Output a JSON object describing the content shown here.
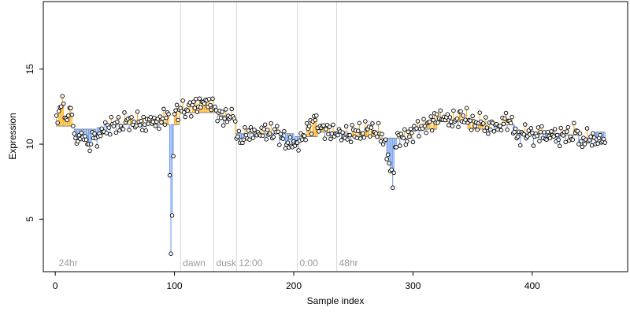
{
  "colors": {
    "above": "#ffa500",
    "below": "#6495ed",
    "point_fill": "#ffffff",
    "point_stroke": "#000000",
    "marker_line": "#d8d8d8"
  },
  "chart_data": {
    "type": "scatter",
    "title": "",
    "xlabel": "Sample index",
    "ylabel": "Expression",
    "xlim": [
      -10,
      480
    ],
    "ylim": [
      1.5,
      19.5
    ],
    "xticks": [
      0,
      100,
      200,
      300,
      400
    ],
    "yticks": [
      5,
      10,
      15
    ],
    "baseline_segments": [
      {
        "x_start": 1,
        "x_end": 15,
        "level": 11.2
      },
      {
        "x_start": 16,
        "x_end": 34,
        "level": 11.0
      },
      {
        "x_start": 35,
        "x_end": 40,
        "level": 11.1
      },
      {
        "x_start": 41,
        "x_end": 96,
        "level": 11.3
      },
      {
        "x_start": 97,
        "x_end": 104,
        "level": 11.3
      },
      {
        "x_start": 105,
        "x_end": 135,
        "level": 12.1
      },
      {
        "x_start": 136,
        "x_end": 150,
        "level": 11.9
      },
      {
        "x_start": 151,
        "x_end": 160,
        "level": 10.7
      },
      {
        "x_start": 161,
        "x_end": 200,
        "level": 10.7
      },
      {
        "x_start": 201,
        "x_end": 220,
        "level": 10.5
      },
      {
        "x_start": 221,
        "x_end": 245,
        "level": 10.8
      },
      {
        "x_start": 246,
        "x_end": 270,
        "level": 10.5
      },
      {
        "x_start": 271,
        "x_end": 300,
        "level": 10.4
      },
      {
        "x_start": 301,
        "x_end": 320,
        "level": 11.0
      },
      {
        "x_start": 321,
        "x_end": 345,
        "level": 11.5
      },
      {
        "x_start": 346,
        "x_end": 365,
        "level": 11.0
      },
      {
        "x_start": 366,
        "x_end": 385,
        "level": 11.3
      },
      {
        "x_start": 386,
        "x_end": 408,
        "level": 10.7
      },
      {
        "x_start": 409,
        "x_end": 425,
        "level": 10.7
      },
      {
        "x_start": 426,
        "x_end": 440,
        "level": 10.6
      },
      {
        "x_start": 441,
        "x_end": 452,
        "level": 10.3
      },
      {
        "x_start": 453,
        "x_end": 461,
        "level": 10.8
      }
    ],
    "markers": [
      {
        "x": 105,
        "label": "dawn"
      },
      {
        "x": 133,
        "label": "dusk"
      },
      {
        "x": 152,
        "label": "12:00"
      },
      {
        "x": 203,
        "label": "0:00"
      },
      {
        "x": 236,
        "label": "48hr"
      }
    ],
    "corner_label": {
      "x": 3,
      "label": "24hr"
    },
    "anchor_points": [
      [
        1,
        11.9
      ],
      [
        3,
        12.2
      ],
      [
        5,
        12.5
      ],
      [
        7,
        12.7
      ],
      [
        9,
        11.7
      ],
      [
        11,
        11.9
      ],
      [
        13,
        12.4
      ],
      [
        15,
        11.2
      ],
      [
        17,
        10.4
      ],
      [
        20,
        10.6
      ],
      [
        24,
        10.3
      ],
      [
        28,
        10.0
      ],
      [
        32,
        10.4
      ],
      [
        36,
        10.5
      ],
      [
        40,
        10.8
      ],
      [
        45,
        11.1
      ],
      [
        50,
        11.4
      ],
      [
        55,
        11.2
      ],
      [
        60,
        11.6
      ],
      [
        65,
        11.3
      ],
      [
        70,
        11.5
      ],
      [
        75,
        11.3
      ],
      [
        80,
        11.8
      ],
      [
        85,
        11.5
      ],
      [
        90,
        11.7
      ],
      [
        95,
        12.0
      ],
      [
        97,
        2.7
      ],
      [
        100,
        12.0
      ],
      [
        105,
        12.4
      ],
      [
        110,
        12.3
      ],
      [
        115,
        12.6
      ],
      [
        120,
        12.5
      ],
      [
        125,
        12.7
      ],
      [
        130,
        12.6
      ],
      [
        133,
        12.4
      ],
      [
        137,
        12.1
      ],
      [
        142,
        11.7
      ],
      [
        147,
        11.8
      ],
      [
        150,
        11.7
      ],
      [
        153,
        10.5
      ],
      [
        155,
        10.1
      ],
      [
        158,
        10.3
      ],
      [
        160,
        10.6
      ],
      [
        165,
        10.9
      ],
      [
        170,
        10.8
      ],
      [
        175,
        11.0
      ],
      [
        180,
        10.7
      ],
      [
        185,
        10.8
      ],
      [
        190,
        10.4
      ],
      [
        195,
        10.1
      ],
      [
        199,
        9.8
      ],
      [
        203,
        10.1
      ],
      [
        208,
        10.6
      ],
      [
        213,
        11.2
      ],
      [
        218,
        11.6
      ],
      [
        222,
        11.2
      ],
      [
        227,
        11.0
      ],
      [
        232,
        10.7
      ],
      [
        237,
        10.6
      ],
      [
        242,
        10.5
      ],
      [
        247,
        10.6
      ],
      [
        252,
        10.9
      ],
      [
        257,
        10.7
      ],
      [
        262,
        11.0
      ],
      [
        267,
        10.8
      ],
      [
        272,
        10.7
      ],
      [
        276,
        10.2
      ],
      [
        279,
        9.3
      ],
      [
        281,
        8.2
      ],
      [
        283,
        7.1
      ],
      [
        285,
        9.8
      ],
      [
        288,
        10.6
      ],
      [
        292,
        10.4
      ],
      [
        297,
        10.5
      ],
      [
        302,
        11.0
      ],
      [
        307,
        11.2
      ],
      [
        312,
        11.4
      ],
      [
        317,
        11.6
      ],
      [
        322,
        11.7
      ],
      [
        327,
        11.6
      ],
      [
        332,
        11.5
      ],
      [
        337,
        11.7
      ],
      [
        342,
        11.9
      ],
      [
        347,
        11.6
      ],
      [
        352,
        11.2
      ],
      [
        357,
        11.5
      ],
      [
        362,
        11.1
      ],
      [
        367,
        11.4
      ],
      [
        372,
        11.2
      ],
      [
        377,
        11.7
      ],
      [
        382,
        11.4
      ],
      [
        385,
        10.8
      ],
      [
        388,
        10.5
      ],
      [
        392,
        10.7
      ],
      [
        397,
        10.9
      ],
      [
        402,
        10.5
      ],
      [
        407,
        10.8
      ],
      [
        412,
        10.3
      ],
      [
        417,
        10.6
      ],
      [
        422,
        10.3
      ],
      [
        427,
        10.8
      ],
      [
        432,
        10.5
      ],
      [
        437,
        10.9
      ],
      [
        441,
        10.2
      ],
      [
        445,
        10.3
      ],
      [
        449,
        10.5
      ],
      [
        453,
        10.0
      ],
      [
        457,
        10.6
      ],
      [
        461,
        10.1
      ]
    ],
    "point_count": 461,
    "grid": false,
    "legend": "none"
  }
}
